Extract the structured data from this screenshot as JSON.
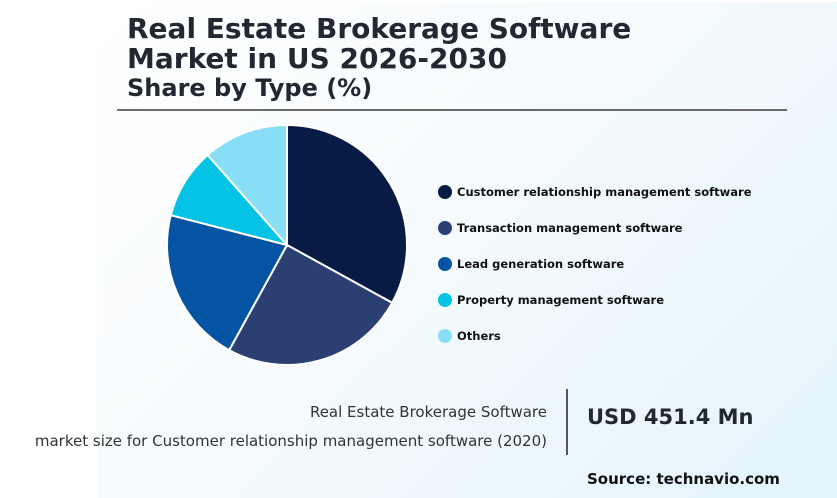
{
  "header": {
    "title": "Real Estate Brokerage Software Market in US 2026-2030",
    "subtitle": "Share by Type (%)"
  },
  "chart_data": {
    "type": "pie",
    "title": "Real Estate Brokerage Software Market in US 2026-2030",
    "subtitle": "Share by Type (%)",
    "legend_position": "right",
    "slices": [
      {
        "label": "Customer relationship management software",
        "value": 33,
        "color": "#081b45"
      },
      {
        "label": "Transaction management software",
        "value": 25,
        "color": "#2b3f72"
      },
      {
        "label": "Lead generation software",
        "value": 21,
        "color": "#0553a3"
      },
      {
        "label": "Property management software",
        "value": 9.5,
        "color": "#04c3e4"
      },
      {
        "label": "Others",
        "value": 11.5,
        "color": "#88def4"
      }
    ]
  },
  "caption": {
    "line1": "Real Estate Brokerage Software",
    "line2": "market size for Customer relationship management software (2020)",
    "value": "USD 451.4 Mn"
  },
  "footer": {
    "source": "Source: technavio.com"
  }
}
